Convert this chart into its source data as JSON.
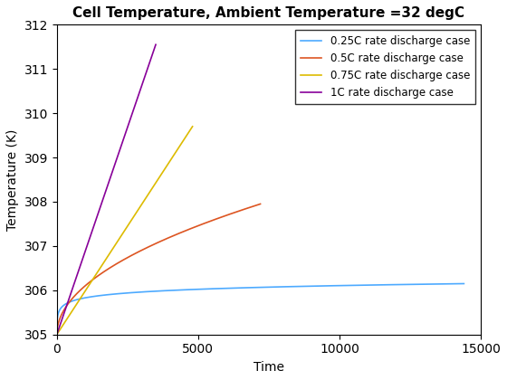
{
  "title": "Cell Temperature, Ambient Temperature =32 degC",
  "xlabel": "Time",
  "ylabel": "Temperature (K)",
  "xlim": [
    0,
    15000
  ],
  "ylim": [
    305,
    312
  ],
  "yticks": [
    305,
    306,
    307,
    308,
    309,
    310,
    311,
    312
  ],
  "xticks": [
    0,
    5000,
    10000,
    15000
  ],
  "T0": 305.0,
  "lines": [
    {
      "label": "0.25C rate discharge case",
      "color": "#4DAAFF",
      "t_end": 14400,
      "T_end": 306.15,
      "shape": "log"
    },
    {
      "label": "0.5C rate discharge case",
      "color": "#DD5522",
      "t_end": 7200,
      "T_end": 307.95,
      "shape": "sqrt"
    },
    {
      "label": "0.75C rate discharge case",
      "color": "#DDBB00",
      "t_end": 4800,
      "T_end": 309.7,
      "shape": "linear"
    },
    {
      "label": "1C rate discharge case",
      "color": "#880099",
      "t_end": 3500,
      "T_end": 311.55,
      "shape": "linear"
    }
  ],
  "legend_loc": "upper right",
  "background_color": "#FFFFFF",
  "grid": false,
  "title_fontsize": 11,
  "axis_fontsize": 10,
  "tick_fontsize": 10,
  "linewidth": 1.2
}
